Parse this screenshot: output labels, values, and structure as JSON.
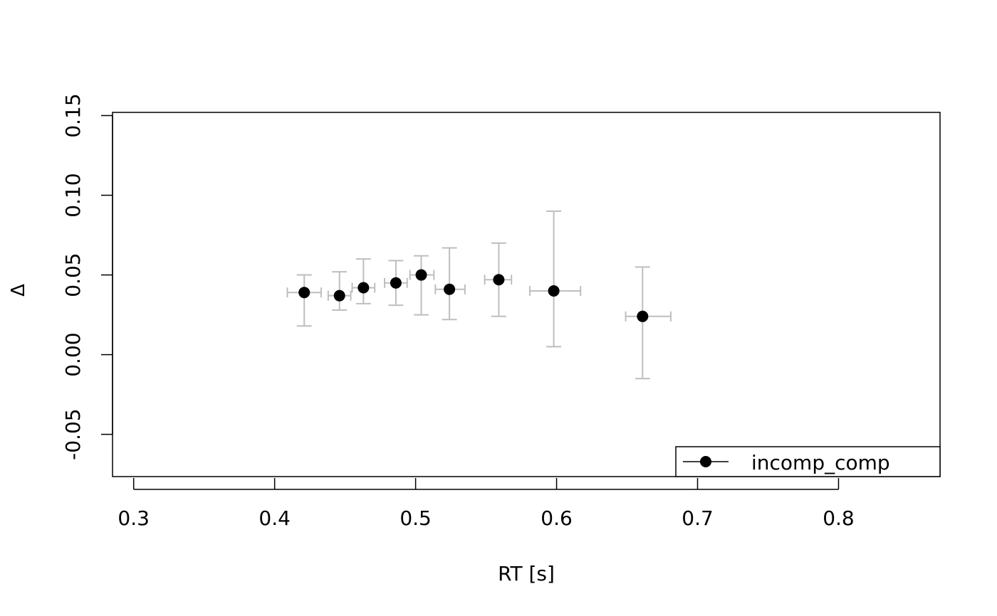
{
  "chart_data": {
    "type": "scatter",
    "title": "",
    "xlabel": "RT [s]",
    "ylabel": "Δ",
    "xlim": [
      0.285,
      0.872
    ],
    "ylim": [
      -0.0765,
      0.152
    ],
    "x_ticks": [
      0.3,
      0.4,
      0.5,
      0.6,
      0.7,
      0.8
    ],
    "x_tick_labels": [
      "0.3",
      "0.4",
      "0.5",
      "0.6",
      "0.7",
      "0.8"
    ],
    "y_ticks": [
      -0.05,
      0.0,
      0.05,
      0.1,
      0.15
    ],
    "y_tick_labels": [
      "-0.05",
      "0.00",
      "0.05",
      "0.10",
      "0.15"
    ],
    "grid": false,
    "legend_position": "bottom-right",
    "colors": {
      "points": "#000000",
      "error_bars": "#bebebe",
      "axes": "#000000"
    },
    "series": [
      {
        "name": "incomp_comp",
        "points": [
          {
            "x": 0.421,
            "y": 0.039,
            "x_lo": 0.409,
            "x_hi": 0.433,
            "y_lo": 0.018,
            "y_hi": 0.05
          },
          {
            "x": 0.446,
            "y": 0.037,
            "x_lo": 0.438,
            "x_hi": 0.454,
            "y_lo": 0.028,
            "y_hi": 0.052
          },
          {
            "x": 0.463,
            "y": 0.042,
            "x_lo": 0.455,
            "x_hi": 0.471,
            "y_lo": 0.032,
            "y_hi": 0.06
          },
          {
            "x": 0.486,
            "y": 0.045,
            "x_lo": 0.478,
            "x_hi": 0.494,
            "y_lo": 0.031,
            "y_hi": 0.059
          },
          {
            "x": 0.504,
            "y": 0.05,
            "x_lo": 0.496,
            "x_hi": 0.513,
            "y_lo": 0.025,
            "y_hi": 0.062
          },
          {
            "x": 0.524,
            "y": 0.041,
            "x_lo": 0.514,
            "x_hi": 0.535,
            "y_lo": 0.022,
            "y_hi": 0.067
          },
          {
            "x": 0.559,
            "y": 0.047,
            "x_lo": 0.549,
            "x_hi": 0.568,
            "y_lo": 0.024,
            "y_hi": 0.07
          },
          {
            "x": 0.598,
            "y": 0.04,
            "x_lo": 0.581,
            "x_hi": 0.617,
            "y_lo": 0.005,
            "y_hi": 0.09
          },
          {
            "x": 0.661,
            "y": 0.024,
            "x_lo": 0.649,
            "x_hi": 0.681,
            "y_lo": -0.015,
            "y_hi": 0.055
          }
        ]
      }
    ]
  }
}
